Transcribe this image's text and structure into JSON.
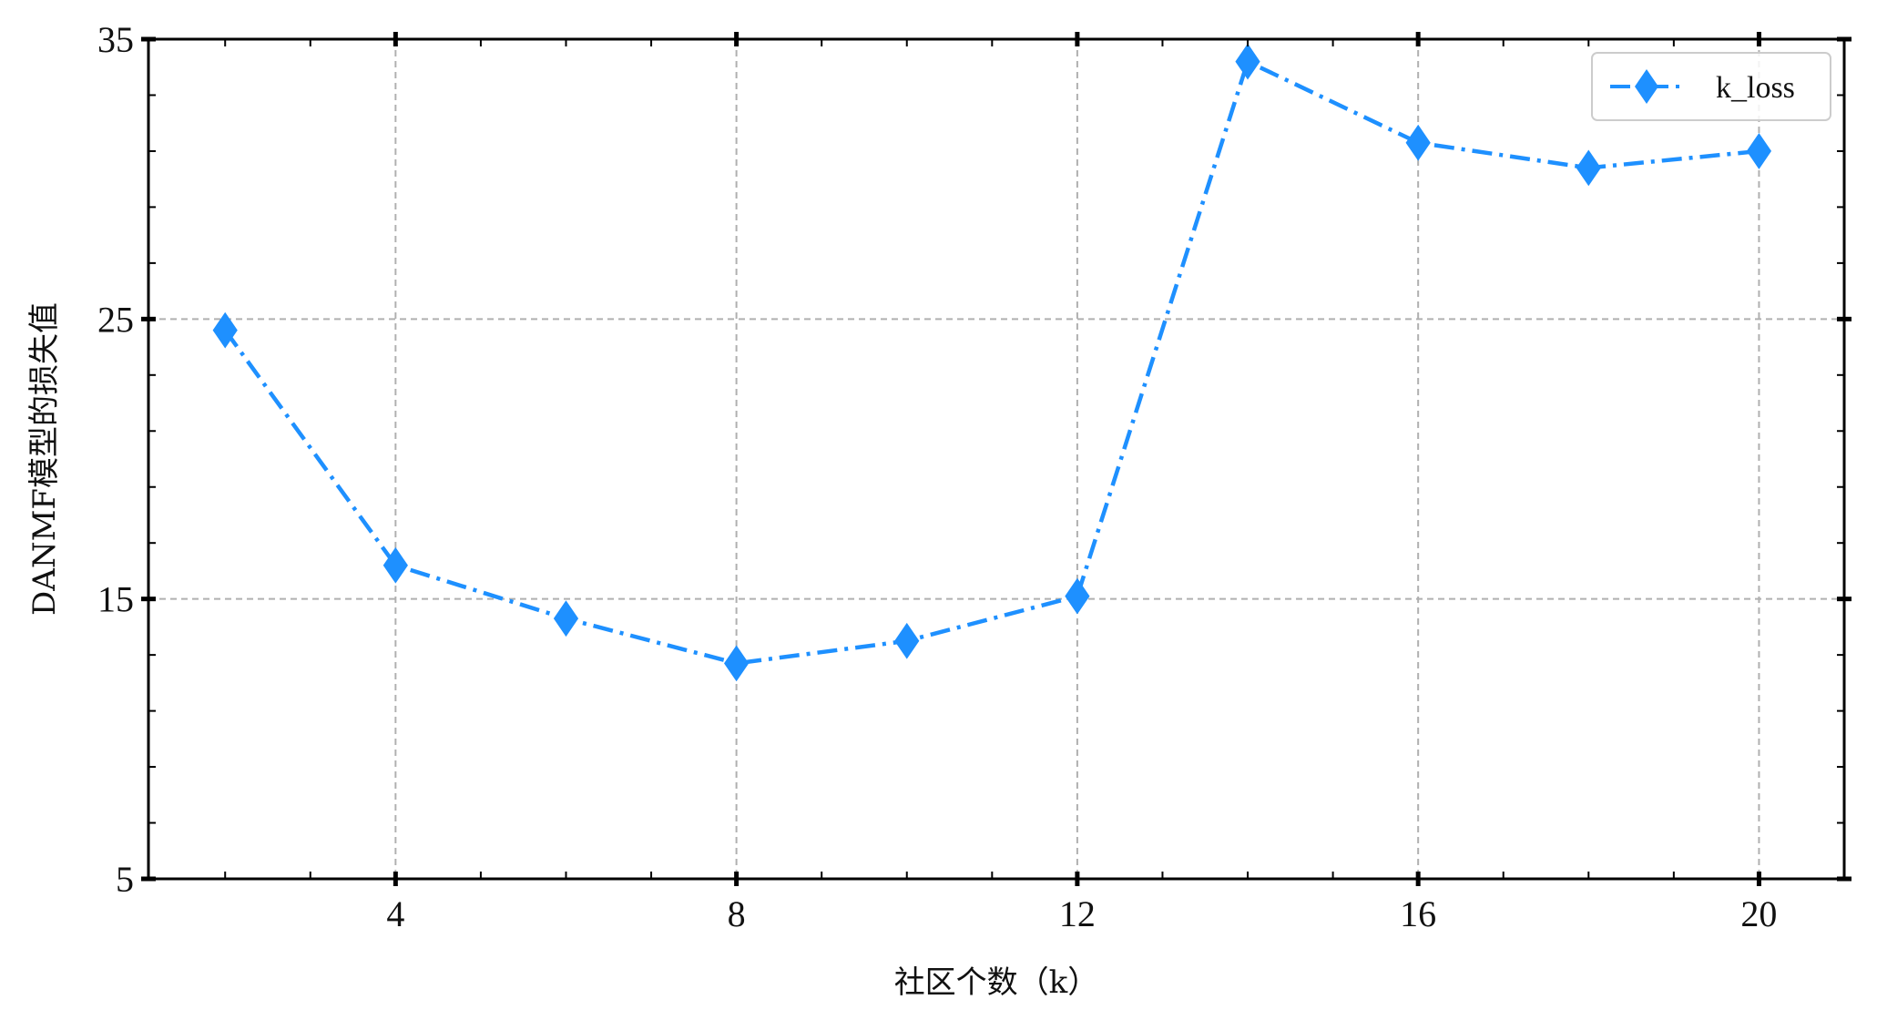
{
  "chart_data": {
    "type": "line",
    "title": "",
    "xlabel": "社区个数（k）",
    "ylabel": "DANMF模型的损失值",
    "x": [
      2,
      4,
      6,
      8,
      10,
      12,
      14,
      16,
      18,
      20
    ],
    "series": [
      {
        "name": "k_loss",
        "values": [
          24.6,
          16.2,
          14.3,
          12.7,
          13.5,
          15.1,
          34.2,
          31.3,
          30.4,
          31.0
        ],
        "color": "#1E90FF",
        "line_style": "dash-dot",
        "marker": "thin-diamond"
      }
    ],
    "xlim": [
      1.1,
      21.0
    ],
    "ylim": [
      5,
      35
    ],
    "xticks": [
      4,
      8,
      12,
      16,
      20
    ],
    "yticks": [
      5,
      15,
      25,
      35
    ],
    "x_minor_step": 1,
    "y_minor_step": 2,
    "grid": true,
    "legend_position": "top-right"
  }
}
